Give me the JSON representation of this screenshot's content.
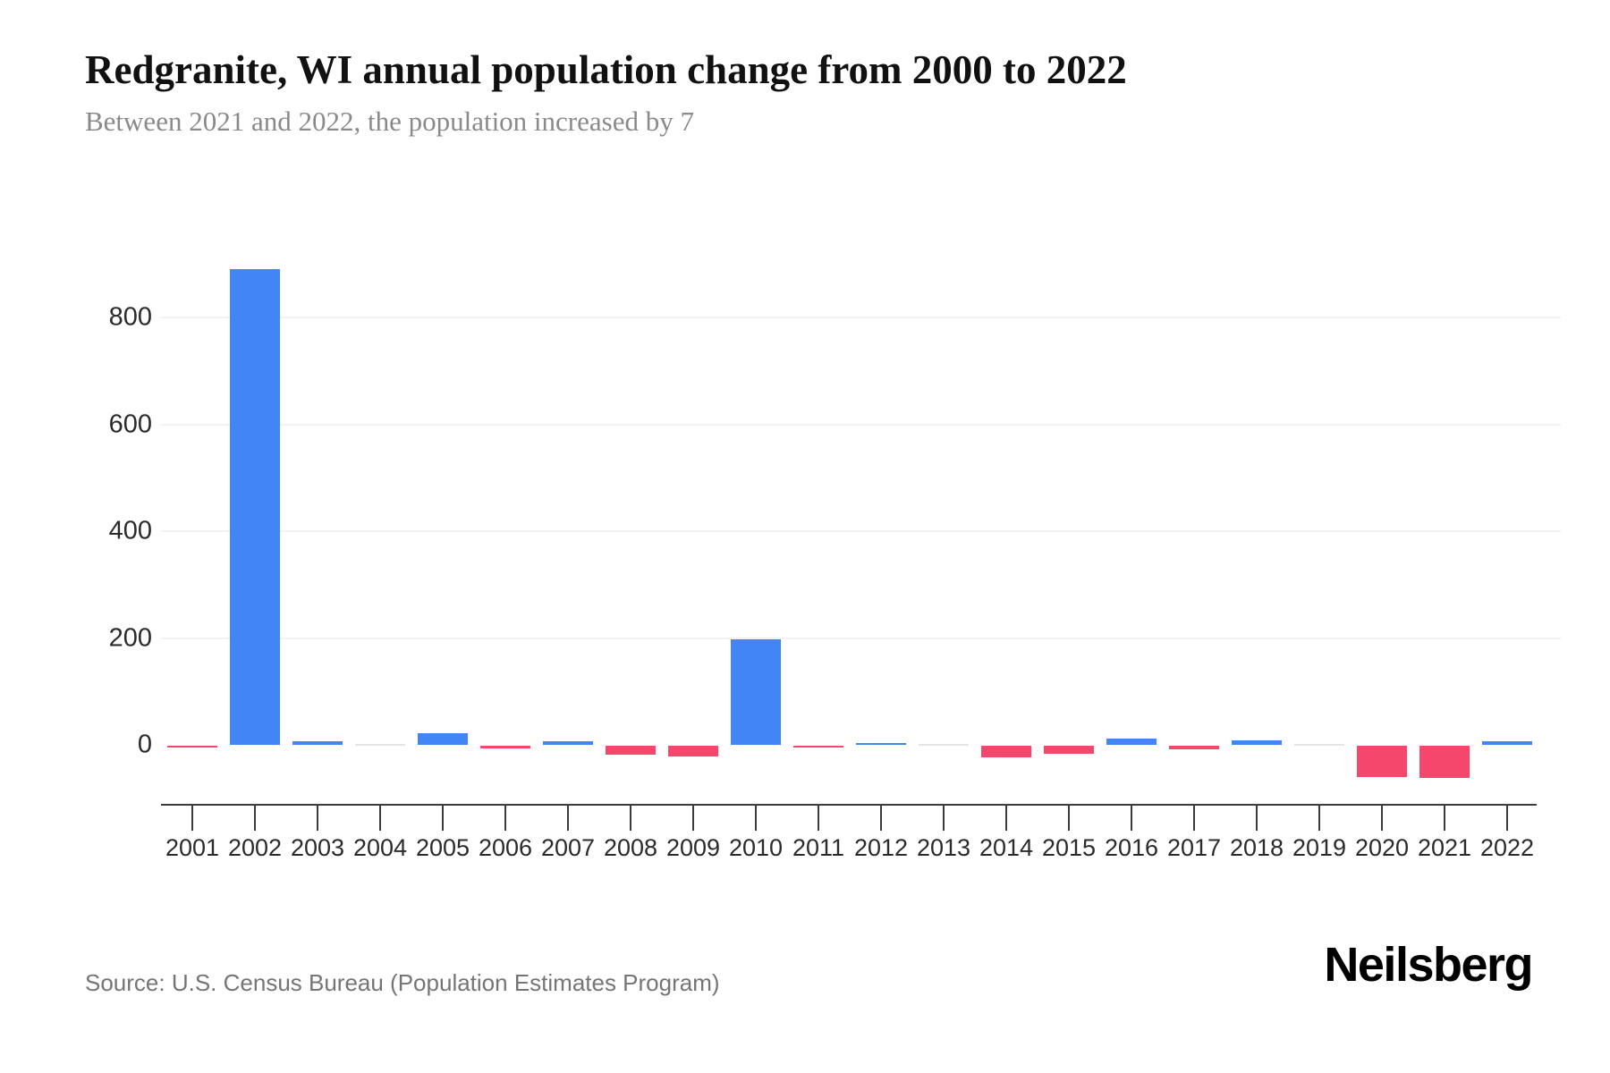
{
  "header": {
    "title": "Redgranite, WI annual population change from 2000 to 2022",
    "subtitle": "Between 2021 and 2022, the population increased by 7"
  },
  "footer": {
    "source": "Source: U.S. Census Bureau (Population Estimates Program)",
    "brand": "Neilsberg"
  },
  "chart_data": {
    "type": "bar",
    "title": "Redgranite, WI annual population change from 2000 to 2022",
    "subtitle": "Between 2021 and 2022, the population increased by 7",
    "xlabel": "",
    "ylabel": "",
    "categories": [
      "2001",
      "2002",
      "2003",
      "2004",
      "2005",
      "2006",
      "2007",
      "2008",
      "2009",
      "2010",
      "2011",
      "2012",
      "2013",
      "2014",
      "2015",
      "2016",
      "2017",
      "2018",
      "2019",
      "2020",
      "2021",
      "2022"
    ],
    "values": [
      -3,
      890,
      7,
      0,
      22,
      -5,
      6,
      -16,
      -20,
      197,
      -3,
      3,
      0,
      -21,
      -15,
      11,
      -7,
      8,
      0,
      -59,
      -60,
      7
    ],
    "y_ticks": [
      0,
      200,
      400,
      600,
      800
    ],
    "ylim": [
      -80,
      900
    ],
    "grid": true,
    "legend": "none",
    "colors": {
      "positive": "#4285F4",
      "negative": "#F4476B",
      "zero": "#E4E4E4",
      "gridline": "#F2F2F2",
      "axis": "#3b3b3b",
      "label": "#2b2b2b"
    }
  }
}
